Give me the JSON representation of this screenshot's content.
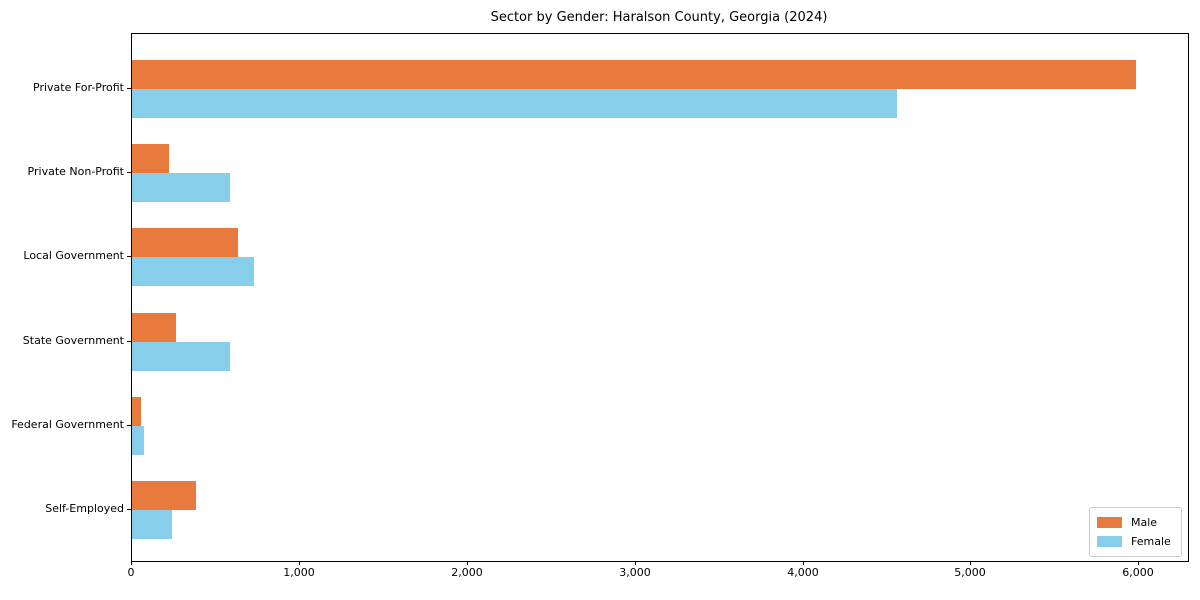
{
  "chart_data": {
    "type": "bar",
    "orientation": "horizontal",
    "title": "Sector by Gender: Haralson County, Georgia (2024)",
    "categories": [
      "Private For-Profit",
      "Private Non-Profit",
      "Local Government",
      "State Government",
      "Federal Government",
      "Self-Employed"
    ],
    "series": [
      {
        "name": "Male",
        "color": "#E87A3D",
        "values": [
          5980,
          220,
          630,
          260,
          55,
          380
        ]
      },
      {
        "name": "Female",
        "color": "#87CEEB",
        "values": [
          4555,
          585,
          725,
          585,
          70,
          240
        ]
      }
    ],
    "xlabel": "",
    "ylabel": "",
    "xlim": [
      0,
      6290
    ],
    "x_ticks": [
      0,
      1000,
      2000,
      3000,
      4000,
      5000,
      6000
    ],
    "x_tick_labels": [
      "0",
      "1,000",
      "2,000",
      "3,000",
      "4,000",
      "5,000",
      "6,000"
    ],
    "legend": {
      "position": "lower right",
      "entries": [
        "Male",
        "Female"
      ]
    },
    "grid": false,
    "axis_color": "#000000",
    "background": "#ffffff"
  }
}
